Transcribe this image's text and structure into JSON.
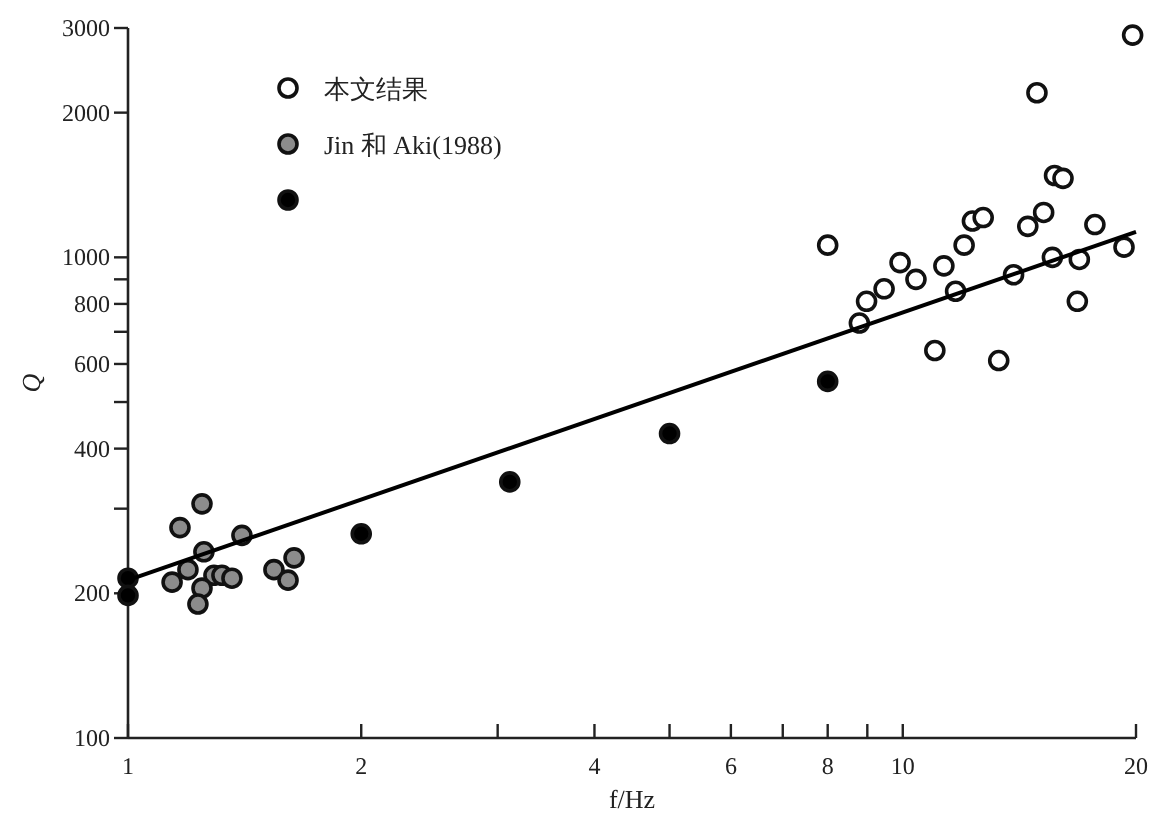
{
  "chart_data": {
    "type": "scatter",
    "xlabel": "f/Hz",
    "ylabel": "Q",
    "log": "xy",
    "xlim": [
      1,
      20
    ],
    "ylim": [
      100,
      3000
    ],
    "xticks": [
      1,
      2,
      {
        "value": 3,
        "label": null
      },
      4,
      {
        "value": 5,
        "label": null
      },
      6,
      {
        "value": 7,
        "label": null
      },
      8,
      {
        "value": 9,
        "label": null
      },
      10,
      20
    ],
    "yticks": [
      100,
      200,
      {
        "value": 300,
        "label": null
      },
      400,
      {
        "value": 500,
        "label": null
      },
      600,
      {
        "value": 700,
        "label": null
      },
      800,
      {
        "value": 900,
        "label": null
      },
      1000,
      2000,
      3000
    ],
    "grid": false,
    "legend": "top left",
    "marker": "circle",
    "series": [
      {
        "name": "本文结果",
        "color": "#ffffff",
        "x": [
          19.8,
          14.9,
          15.7,
          16.1,
          15.2,
          14.5,
          12.3,
          12.7,
          17.7,
          12.0,
          8.0,
          9.92,
          11.3,
          10.4,
          15.6,
          16.9,
          19.3,
          13.9,
          11.7,
          9.46,
          8.98,
          8.79,
          16.8,
          11.0,
          13.3
        ],
        "values": [
          2900,
          2200,
          1480,
          1460,
          1240,
          1160,
          1190,
          1210,
          1170,
          1060,
          1060,
          975,
          960,
          900,
          1000,
          990,
          1050,
          920,
          850,
          860,
          810,
          730,
          810,
          640,
          610
        ]
      },
      {
        "name": "Jin 和 Aki(1988)",
        "color": "#8c8c8c",
        "x": [
          1.167,
          1.246,
          1.403,
          1.253,
          1.195,
          1.14,
          1.291,
          1.322,
          1.362,
          1.246,
          1.231,
          1.543,
          1.638,
          1.609
        ],
        "values": [
          274,
          307,
          264,
          244,
          224,
          211,
          218,
          218,
          215,
          205,
          190,
          224,
          237,
          213
        ]
      },
      {
        "color": "#000000",
        "x": [
          1,
          1,
          2,
          3.11,
          5.0,
          8.0
        ],
        "values": [
          215,
          198,
          266,
          341,
          430,
          552
        ]
      },
      {
        "type": "line",
        "color": "#000000",
        "x": [
          1,
          20
        ],
        "values": [
          213,
          1130
        ],
        "line_style": "solid",
        "marker": "none"
      }
    ]
  }
}
